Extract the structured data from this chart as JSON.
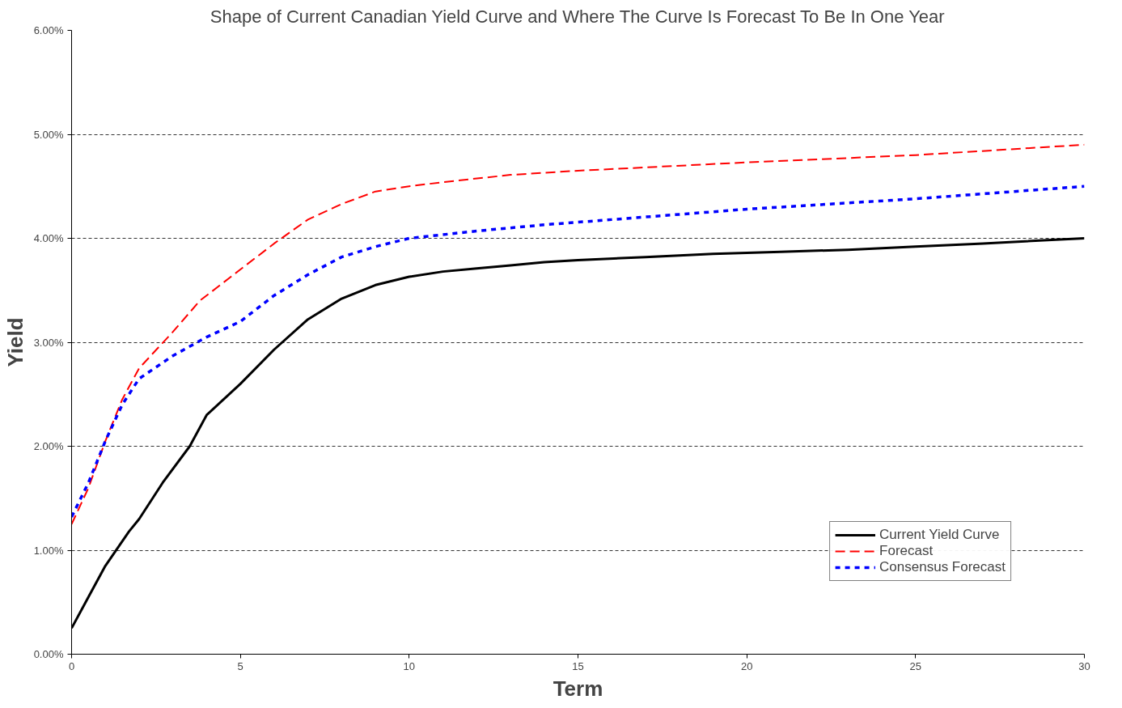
{
  "chart_data": {
    "type": "line",
    "title": "Shape of Current Canadian Yield Curve and Where The Curve Is Forecast To Be In One Year",
    "xlabel": "Term",
    "ylabel": "Yield",
    "xlim": [
      0,
      30
    ],
    "xticks": [
      0,
      5,
      10,
      15,
      20,
      25,
      30
    ],
    "ylim": [
      0,
      6
    ],
    "yticks": [
      {
        "value": 0,
        "label": "0.00%"
      },
      {
        "value": 1,
        "label": "1.00%"
      },
      {
        "value": 2,
        "label": "2.00%"
      },
      {
        "value": 3,
        "label": "3.00%"
      },
      {
        "value": 4,
        "label": "4.00%"
      },
      {
        "value": 5,
        "label": "5.00%"
      },
      {
        "value": 6,
        "label": "6.00%"
      }
    ],
    "grid": "y",
    "legend": "bottom right",
    "series": [
      {
        "name": "Current Yield Curve",
        "color": "#000000",
        "line_style": "solid",
        "x": [
          0,
          0.5,
          1,
          1.7,
          2,
          2.7,
          3.5,
          4,
          5,
          6,
          7,
          8,
          9,
          10,
          11,
          12,
          13,
          14,
          15,
          17,
          19,
          21,
          23,
          25,
          27,
          30
        ],
        "values": [
          0.25,
          0.55,
          0.85,
          1.18,
          1.3,
          1.65,
          2.0,
          2.3,
          2.6,
          2.93,
          3.22,
          3.42,
          3.55,
          3.63,
          3.68,
          3.71,
          3.74,
          3.77,
          3.79,
          3.82,
          3.85,
          3.87,
          3.89,
          3.92,
          3.95,
          4.0
        ]
      },
      {
        "name": "Forecast",
        "color": "#ff0000",
        "line_style": "dashed",
        "x": [
          0,
          0.5,
          1,
          1.5,
          2,
          3,
          3.8,
          5,
          6,
          7,
          8,
          9,
          10,
          11,
          13,
          15,
          20,
          25,
          30
        ],
        "values": [
          1.25,
          1.6,
          2.05,
          2.45,
          2.75,
          3.1,
          3.4,
          3.7,
          3.95,
          4.18,
          4.33,
          4.45,
          4.5,
          4.54,
          4.61,
          4.65,
          4.73,
          4.8,
          4.9
        ]
      },
      {
        "name": "Consensus Forecast",
        "color": "#0000ff",
        "line_style": "dotted",
        "x": [
          0,
          0.5,
          1,
          1.5,
          2,
          3,
          4,
          5,
          6,
          7,
          8,
          9,
          10,
          12,
          14,
          16,
          18,
          20,
          25,
          30
        ],
        "values": [
          1.32,
          1.65,
          2.05,
          2.4,
          2.65,
          2.87,
          3.05,
          3.2,
          3.45,
          3.65,
          3.82,
          3.92,
          4.0,
          4.07,
          4.13,
          4.18,
          4.23,
          4.28,
          4.38,
          4.5
        ]
      }
    ]
  }
}
